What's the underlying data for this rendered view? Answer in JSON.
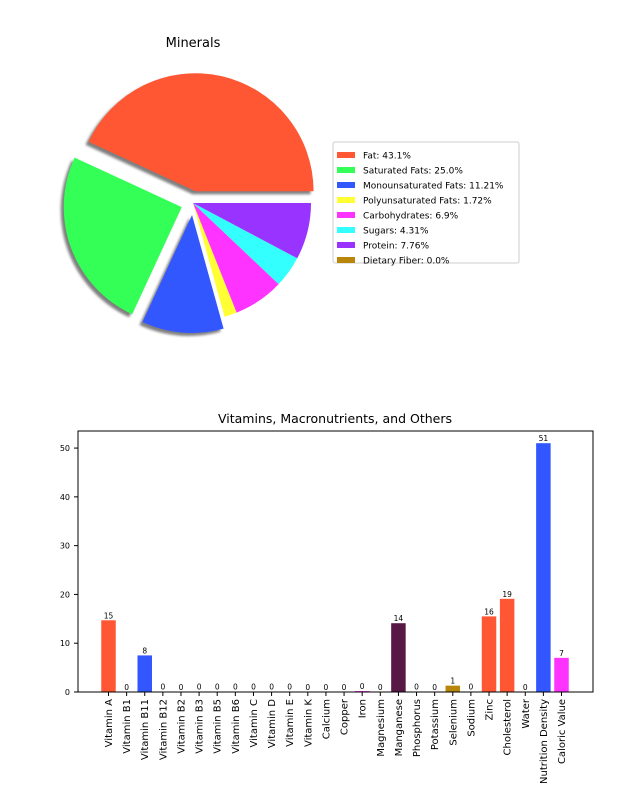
{
  "chart_data": [
    {
      "type": "pie",
      "title": "Minerals",
      "legend_position": "right",
      "slices": [
        {
          "label": "Fat: 43.1%",
          "value": 43.1,
          "color": "#ff5733",
          "exploded": true
        },
        {
          "label": "Saturated Fats: 25.0%",
          "value": 25.0,
          "color": "#33ff57",
          "exploded": true
        },
        {
          "label": "Monounsaturated Fats: 11.21%",
          "value": 11.21,
          "color": "#3357ff",
          "exploded": true
        },
        {
          "label": "Polyunsaturated Fats: 1.72%",
          "value": 1.72,
          "color": "#ffff33",
          "exploded": false
        },
        {
          "label": "Carbohydrates: 6.9%",
          "value": 6.9,
          "color": "#ff33ff",
          "exploded": false
        },
        {
          "label": "Sugars: 4.31%",
          "value": 4.31,
          "color": "#33ffff",
          "exploded": false
        },
        {
          "label": "Protein: 7.76%",
          "value": 7.76,
          "color": "#9933ff",
          "exploded": false
        },
        {
          "label": "Dietary Fiber: 0.0%",
          "value": 0.0,
          "color": "#b8860b",
          "exploded": false
        }
      ]
    },
    {
      "type": "bar",
      "title": "Vitamins, Macronutrients, and Others",
      "ylim": [
        0,
        53.5
      ],
      "yticks": [
        0,
        10,
        20,
        30,
        40,
        50
      ],
      "categories": [
        "Vitamin A",
        "Vitamin B1",
        "Vitamin B11",
        "Vitamin B12",
        "Vitamin B2",
        "Vitamin B3",
        "Vitamin B5",
        "Vitamin B6",
        "Vitamin C",
        "Vitamin D",
        "Vitamin E",
        "Vitamin K",
        "Calcium",
        "Copper",
        "Iron",
        "Magnesium",
        "Manganese",
        "Phosphorus",
        "Potassium",
        "Selenium",
        "Sodium",
        "Zinc",
        "Cholesterol",
        "Water",
        "Nutrition Density",
        "Caloric Value"
      ],
      "values": [
        14.7,
        0.0,
        7.5,
        0.1,
        0.0,
        0.1,
        0.1,
        0.1,
        0.1,
        0.1,
        0.1,
        0.0,
        0.0,
        0.0,
        0.2,
        0.0,
        14.1,
        0.1,
        0.0,
        1.3,
        0.1,
        15.5,
        19.1,
        0.0,
        51.0,
        7.0
      ],
      "value_labels": [
        "15",
        "0",
        "8",
        "0",
        "0",
        "0",
        "0",
        "0",
        "0",
        "0",
        "0",
        "0",
        "0",
        "0",
        "0",
        "0",
        "14",
        "0",
        "0",
        "1",
        "0",
        "16",
        "19",
        "0",
        "51",
        "7"
      ],
      "colors": [
        "#ff5733",
        "#ff5733",
        "#3357ff",
        "#ff33ff",
        "#ffff33",
        "#ff5733",
        "#33ffff",
        "#9933ff",
        "#ff5733",
        "#33ff57",
        "#3357ff",
        "#ffff33",
        "#ff33ff",
        "#33ffff",
        "#ff33ff",
        "#9933ff",
        "#581845",
        "#ff33ff",
        "#3357ff",
        "#b8860b",
        "#33ff57",
        "#ff5733",
        "#ff5733",
        "#33ffff",
        "#3357ff",
        "#ff33ff"
      ]
    }
  ]
}
